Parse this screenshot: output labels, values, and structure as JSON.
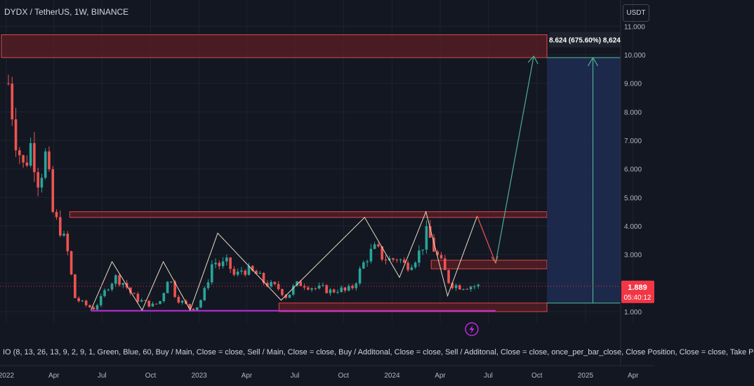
{
  "header": {
    "title": "DYDX / TetherUS, 1W, BINANCE",
    "currency_button": "USDT"
  },
  "price_label": {
    "price": "1.889",
    "countdown": "05:40:12"
  },
  "measure_label": "8.624 (675.60%) 8,624",
  "indicator_text": "IO (8, 13, 26, 13, 9, 2, 9, 1, Green, Blue, 60, Buy / Main, Close = close, Sell / Main, Close = close, Buy / Additonal, Close = close, Sell / Additonal, Close = close, once_per_bar_close, Close Position, Close = close, Take P",
  "colors": {
    "background": "#131722",
    "bull": "#26a69a",
    "bear": "#ef5350",
    "zone_fill": "#5c1f26",
    "zone_border": "#e0474d",
    "support_line": "#c02bd6",
    "zigzag": "#e8dcc4",
    "target_arrow": "#4caf8e",
    "drop_arrow": "#ef5350",
    "projection_fill": "#1e2d52",
    "price_badge": "#f23645",
    "flash_icon": "#c02bd6"
  },
  "icons": {
    "flash": "lightning-icon"
  },
  "chart_data": {
    "type": "candlestick",
    "title": "DYDX / TetherUS, 1W, BINANCE",
    "y_ticks": [
      "1.000",
      "2.000",
      "3.000",
      "4.000",
      "5.000",
      "6.000",
      "7.000",
      "8.000",
      "9.000",
      "10.000",
      "11.000"
    ],
    "ylim": [
      0.4,
      11.5
    ],
    "x_ticks": [
      {
        "label": "2022",
        "date": "2022-01-01"
      },
      {
        "label": "Apr",
        "date": "2022-04-01"
      },
      {
        "label": "Jul",
        "date": "2022-07-01"
      },
      {
        "label": "Oct",
        "date": "2022-10-01"
      },
      {
        "label": "2023",
        "date": "2023-01-01"
      },
      {
        "label": "Apr",
        "date": "2023-04-01"
      },
      {
        "label": "Jul",
        "date": "2023-07-01"
      },
      {
        "label": "Oct",
        "date": "2023-10-01"
      },
      {
        "label": "2024",
        "date": "2024-01-01"
      },
      {
        "label": "Apr",
        "date": "2024-04-01"
      },
      {
        "label": "Jul",
        "date": "2024-07-01"
      },
      {
        "label": "Oct",
        "date": "2024-10-01"
      },
      {
        "label": "2025",
        "date": "2025-01-01"
      },
      {
        "label": "Apr",
        "date": "2025-04-01"
      }
    ],
    "close_path": [
      [
        "2022-01-05",
        9.0
      ],
      [
        "2022-01-20",
        7.0
      ],
      [
        "2022-02-03",
        6.0
      ],
      [
        "2022-02-17",
        6.9
      ],
      [
        "2022-03-03",
        5.6
      ],
      [
        "2022-03-17",
        6.5
      ],
      [
        "2022-03-31",
        4.3
      ],
      [
        "2022-04-14",
        3.9
      ],
      [
        "2022-04-28",
        3.0
      ],
      [
        "2022-05-10",
        1.5
      ],
      [
        "2022-05-24",
        1.3
      ],
      [
        "2022-06-14",
        1.1
      ],
      [
        "2022-06-28",
        1.4
      ],
      [
        "2022-07-12",
        1.9
      ],
      [
        "2022-07-26",
        2.2
      ],
      [
        "2022-08-12",
        2.0
      ],
      [
        "2022-08-26",
        1.6
      ],
      [
        "2022-09-09",
        1.4
      ],
      [
        "2022-09-23",
        1.3
      ],
      [
        "2022-10-07",
        1.2
      ],
      [
        "2022-10-21",
        1.4
      ],
      [
        "2022-11-04",
        2.3
      ],
      [
        "2022-11-18",
        1.5
      ],
      [
        "2022-12-02",
        1.3
      ],
      [
        "2022-12-16",
        1.1
      ],
      [
        "2022-12-30",
        1.2
      ],
      [
        "2023-01-13",
        1.8
      ],
      [
        "2023-01-27",
        2.8
      ],
      [
        "2023-02-10",
        2.6
      ],
      [
        "2023-02-24",
        2.7
      ],
      [
        "2023-03-10",
        2.2
      ],
      [
        "2023-03-24",
        2.5
      ],
      [
        "2023-04-07",
        2.4
      ],
      [
        "2023-04-21",
        2.3
      ],
      [
        "2023-05-05",
        2.0
      ],
      [
        "2023-05-19",
        1.9
      ],
      [
        "2023-06-02",
        1.8
      ],
      [
        "2023-06-16",
        1.5
      ],
      [
        "2023-06-30",
        1.9
      ],
      [
        "2023-07-14",
        2.0
      ],
      [
        "2023-07-28",
        1.9
      ],
      [
        "2023-08-11",
        1.8
      ],
      [
        "2023-08-25",
        1.8
      ],
      [
        "2023-09-08",
        1.7
      ],
      [
        "2023-09-22",
        1.8
      ],
      [
        "2023-10-06",
        1.7
      ],
      [
        "2023-10-20",
        1.9
      ],
      [
        "2023-11-03",
        2.5
      ],
      [
        "2023-11-17",
        3.0
      ],
      [
        "2023-12-01",
        3.2
      ],
      [
        "2023-12-15",
        2.9
      ],
      [
        "2023-12-29",
        2.8
      ],
      [
        "2024-01-12",
        2.9
      ],
      [
        "2024-01-26",
        2.6
      ],
      [
        "2024-02-09",
        2.8
      ],
      [
        "2024-02-23",
        3.1
      ],
      [
        "2024-03-08",
        3.8
      ],
      [
        "2024-03-22",
        3.1
      ],
      [
        "2024-04-05",
        2.6
      ],
      [
        "2024-04-19",
        2.0
      ],
      [
        "2024-05-03",
        1.9
      ],
      [
        "2024-05-17",
        1.9
      ],
      [
        "2024-05-31",
        1.9
      ],
      [
        "2024-06-14",
        1.889
      ]
    ],
    "zones": [
      {
        "name": "target-zone",
        "from": "2021-12-01",
        "to": "2024-10-20",
        "low": 9.9,
        "high": 10.7
      },
      {
        "name": "resistance-zone",
        "from": "2022-05-01",
        "to": "2024-10-20",
        "low": 4.3,
        "high": 4.5
      },
      {
        "name": "retest-zone",
        "from": "2024-03-15",
        "to": "2024-10-20",
        "low": 2.5,
        "high": 2.8
      },
      {
        "name": "support-zone",
        "from": "2023-06-01",
        "to": "2024-10-20",
        "low": 1.0,
        "high": 1.3
      }
    ],
    "support_line": {
      "from": "2022-06-10",
      "to": "2024-07-15",
      "value": 1.03
    },
    "zigzag": [
      [
        "2022-06-10",
        1.05
      ],
      [
        "2022-07-20",
        2.75
      ],
      [
        "2022-09-15",
        1.05
      ],
      [
        "2022-10-25",
        2.75
      ],
      [
        "2022-12-15",
        1.05
      ],
      [
        "2023-02-05",
        3.75
      ],
      [
        "2023-06-05",
        1.4
      ],
      [
        "2023-11-10",
        4.3
      ],
      [
        "2024-01-15",
        2.2
      ],
      [
        "2024-03-05",
        4.5
      ],
      [
        "2024-04-15",
        1.55
      ],
      [
        "2024-06-10",
        4.35
      ]
    ],
    "projection_arrow": [
      [
        "2024-06-10",
        4.35
      ],
      [
        "2024-07-15",
        2.7
      ],
      [
        "2024-09-25",
        9.95
      ]
    ],
    "measure": {
      "from": "2024-10-20",
      "to": "2025-05-15",
      "low": 1.3,
      "high": 9.9,
      "arrow_at": "2025-01-15"
    }
  }
}
